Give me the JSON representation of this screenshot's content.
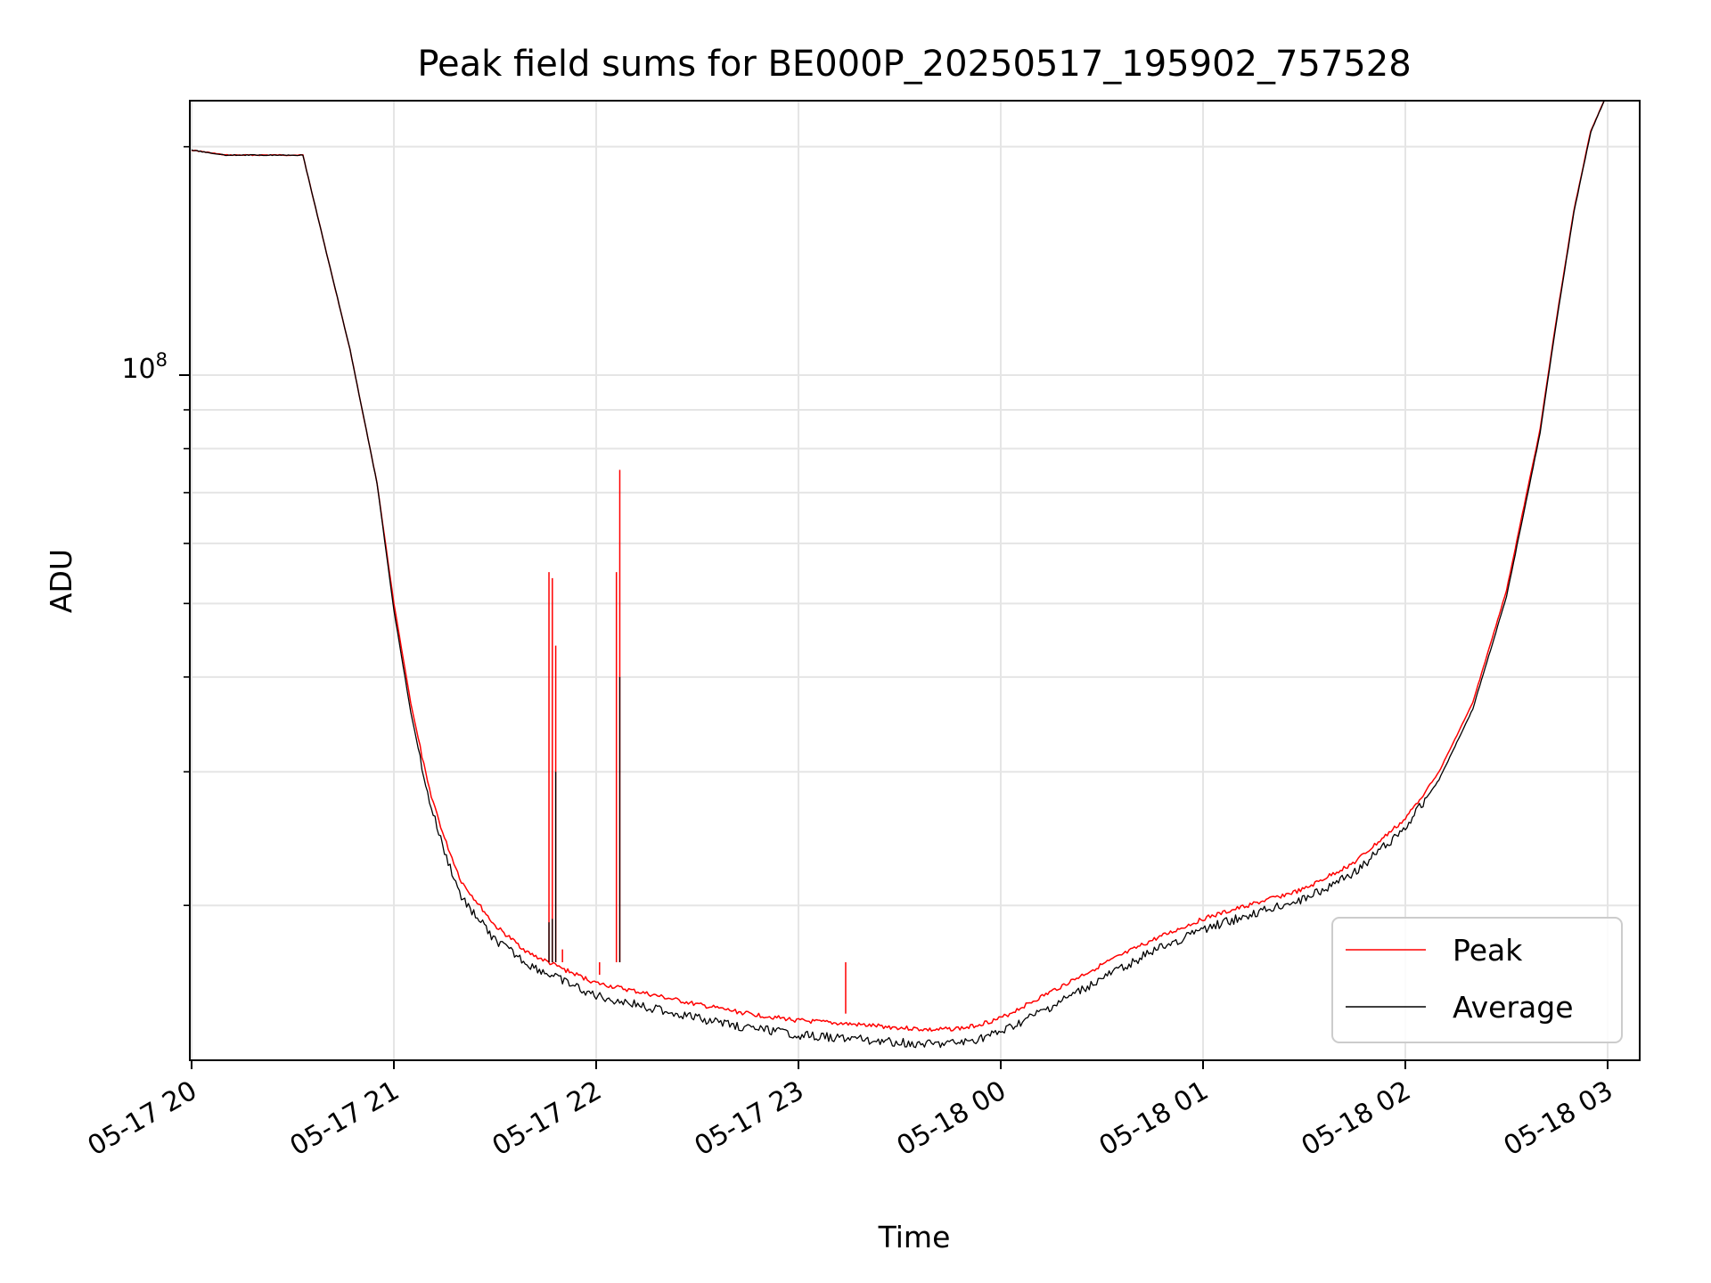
{
  "chart_data": {
    "type": "line",
    "title": "Peak field sums for BE000P_20250517_195902_757528",
    "xlabel": "Time",
    "ylabel": "ADU",
    "yscale": "log",
    "xlim": [
      "2025-05-17 20:00",
      "2025-05-18 03:00"
    ],
    "ylim": [
      12500000,
      230000000
    ],
    "x_ticks": [
      "05-17 20",
      "05-17 21",
      "05-17 22",
      "05-17 23",
      "05-18 00",
      "05-18 01",
      "05-18 02",
      "05-18 03"
    ],
    "y_major_tick": {
      "label_base": "10",
      "label_exp": "8",
      "value": 100000000
    },
    "y_minor_ticks": [
      20000000,
      30000000,
      40000000,
      50000000,
      60000000,
      70000000,
      80000000,
      90000000,
      200000000
    ],
    "grid": true,
    "legend_position": "lower-right",
    "series": [
      {
        "name": "Peak",
        "color": "#ff0000",
        "points": [
          [
            "2025-05-17 20:00",
            198000000
          ],
          [
            "2025-05-17 20:10",
            195000000
          ],
          [
            "2025-05-17 20:25",
            195000000
          ],
          [
            "2025-05-17 20:33",
            195000000
          ],
          [
            "2025-05-17 20:40",
            145000000
          ],
          [
            "2025-05-17 20:47",
            108000000
          ],
          [
            "2025-05-17 20:55",
            72000000
          ],
          [
            "2025-05-17 21:00",
            50000000
          ],
          [
            "2025-05-17 21:05",
            37000000
          ],
          [
            "2025-05-17 21:10",
            29000000
          ],
          [
            "2025-05-17 21:15",
            24500000
          ],
          [
            "2025-05-17 21:20",
            21500000
          ],
          [
            "2025-05-17 21:30",
            18800000
          ],
          [
            "2025-05-17 21:40",
            17300000
          ],
          [
            "2025-05-17 21:50",
            16500000
          ],
          [
            "2025-05-17 22:00",
            15800000
          ],
          [
            "2025-05-17 22:15",
            15300000
          ],
          [
            "2025-05-17 22:30",
            14800000
          ],
          [
            "2025-05-17 22:45",
            14400000
          ],
          [
            "2025-05-17 23:00",
            14100000
          ],
          [
            "2025-05-17 23:20",
            13900000
          ],
          [
            "2025-05-17 23:40",
            13700000
          ],
          [
            "2025-05-17 23:50",
            13800000
          ],
          [
            "2025-05-18 00:00",
            14200000
          ],
          [
            "2025-05-18 00:15",
            15400000
          ],
          [
            "2025-05-18 00:30",
            16700000
          ],
          [
            "2025-05-18 00:45",
            18000000
          ],
          [
            "2025-05-18 01:00",
            19200000
          ],
          [
            "2025-05-18 01:15",
            20100000
          ],
          [
            "2025-05-18 01:30",
            21000000
          ],
          [
            "2025-05-18 01:45",
            22800000
          ],
          [
            "2025-05-18 02:00",
            26000000
          ],
          [
            "2025-05-18 02:10",
            30000000
          ],
          [
            "2025-05-18 02:20",
            37000000
          ],
          [
            "2025-05-18 02:30",
            52000000
          ],
          [
            "2025-05-18 02:40",
            85000000
          ],
          [
            "2025-05-18 02:45",
            120000000
          ],
          [
            "2025-05-18 02:50",
            165000000
          ],
          [
            "2025-05-18 02:55",
            210000000
          ],
          [
            "2025-05-18 02:59",
            230000000
          ]
        ],
        "spikes": [
          [
            "2025-05-17 21:46",
            55000000
          ],
          [
            "2025-05-17 21:47",
            54000000
          ],
          [
            "2025-05-17 21:48",
            44000000
          ],
          [
            "2025-05-17 21:50",
            17500000
          ],
          [
            "2025-05-17 22:01",
            16200000
          ],
          [
            "2025-05-17 22:06",
            55000000
          ],
          [
            "2025-05-17 22:07",
            75000000
          ],
          [
            "2025-05-17 23:14",
            14400000
          ]
        ]
      },
      {
        "name": "Average",
        "color": "#000000",
        "points": [
          [
            "2025-05-17 20:00",
            198000000
          ],
          [
            "2025-05-17 20:10",
            195000000
          ],
          [
            "2025-05-17 20:25",
            195000000
          ],
          [
            "2025-05-17 20:33",
            195000000
          ],
          [
            "2025-05-17 20:40",
            145000000
          ],
          [
            "2025-05-17 20:47",
            108000000
          ],
          [
            "2025-05-17 20:55",
            72000000
          ],
          [
            "2025-05-17 21:00",
            49000000
          ],
          [
            "2025-05-17 21:05",
            36000000
          ],
          [
            "2025-05-17 21:10",
            28000000
          ],
          [
            "2025-05-17 21:15",
            23500000
          ],
          [
            "2025-05-17 21:20",
            20500000
          ],
          [
            "2025-05-17 21:30",
            18000000
          ],
          [
            "2025-05-17 21:40",
            16700000
          ],
          [
            "2025-05-17 21:50",
            15900000
          ],
          [
            "2025-05-17 22:00",
            15200000
          ],
          [
            "2025-05-17 22:15",
            14700000
          ],
          [
            "2025-05-17 22:30",
            14200000
          ],
          [
            "2025-05-17 22:45",
            13800000
          ],
          [
            "2025-05-17 23:00",
            13500000
          ],
          [
            "2025-05-17 23:20",
            13300000
          ],
          [
            "2025-05-17 23:40",
            13100000
          ],
          [
            "2025-05-17 23:50",
            13200000
          ],
          [
            "2025-05-18 00:00",
            13600000
          ],
          [
            "2025-05-18 00:15",
            14700000
          ],
          [
            "2025-05-18 00:30",
            16000000
          ],
          [
            "2025-05-18 00:45",
            17400000
          ],
          [
            "2025-05-18 01:00",
            18600000
          ],
          [
            "2025-05-18 01:15",
            19500000
          ],
          [
            "2025-05-18 01:30",
            20400000
          ],
          [
            "2025-05-18 01:45",
            22100000
          ],
          [
            "2025-05-18 02:00",
            25300000
          ],
          [
            "2025-05-18 02:10",
            29300000
          ],
          [
            "2025-05-18 02:20",
            36300000
          ],
          [
            "2025-05-18 02:30",
            51000000
          ],
          [
            "2025-05-18 02:40",
            84000000
          ],
          [
            "2025-05-18 02:45",
            119000000
          ],
          [
            "2025-05-18 02:50",
            164000000
          ],
          [
            "2025-05-18 02:55",
            209000000
          ],
          [
            "2025-05-18 02:59",
            230000000
          ]
        ],
        "spikes": [
          [
            "2025-05-17 21:46",
            19000000
          ],
          [
            "2025-05-17 21:47",
            19200000
          ],
          [
            "2025-05-17 21:48",
            30000000
          ],
          [
            "2025-05-17 22:07",
            40000000
          ]
        ]
      }
    ]
  }
}
